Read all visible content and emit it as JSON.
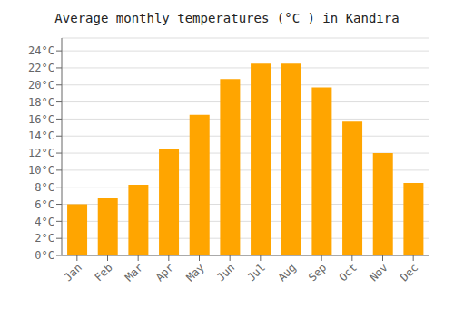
{
  "chart_data": {
    "type": "bar",
    "title": "Average monthly temperatures (°C ) in Kandıra",
    "categories": [
      "Jan",
      "Feb",
      "Mar",
      "Apr",
      "May",
      "Jun",
      "Jul",
      "Aug",
      "Sep",
      "Oct",
      "Nov",
      "Dec"
    ],
    "values": [
      6.0,
      6.7,
      8.3,
      12.5,
      16.5,
      20.7,
      22.5,
      22.5,
      19.7,
      15.7,
      12.0,
      8.5
    ],
    "color": "#FFA500",
    "ylim": [
      0,
      25.5
    ],
    "yticks": [
      {
        "value": 0,
        "label": "0°C"
      },
      {
        "value": 2,
        "label": "2°C"
      },
      {
        "value": 4,
        "label": "4°C"
      },
      {
        "value": 6,
        "label": "6°C"
      },
      {
        "value": 8,
        "label": "8°C"
      },
      {
        "value": 10,
        "label": "10°C"
      },
      {
        "value": 12,
        "label": "12°C"
      },
      {
        "value": 14,
        "label": "14°C"
      },
      {
        "value": 16,
        "label": "16°C"
      },
      {
        "value": 18,
        "label": "18°C"
      },
      {
        "value": 20,
        "label": "20°C"
      },
      {
        "value": 22,
        "label": "22°C"
      },
      {
        "value": 24,
        "label": "24°C"
      }
    ],
    "grid": true
  }
}
